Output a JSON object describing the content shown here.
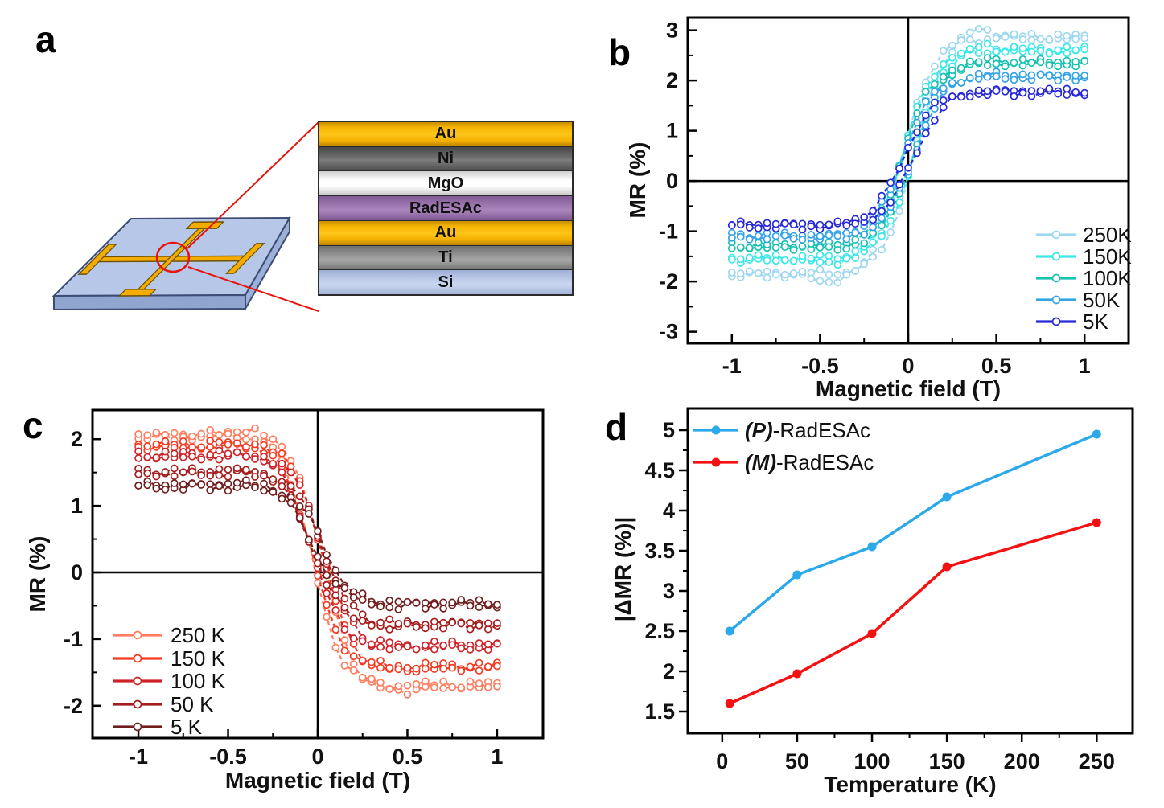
{
  "figure": {
    "background": "#ffffff"
  },
  "panels": {
    "a": {
      "letter": "a"
    },
    "b": {
      "letter": "b"
    },
    "c": {
      "letter": "c"
    },
    "d": {
      "letter": "d"
    }
  },
  "device": {
    "stack_layers": [
      {
        "label": "Au",
        "material": "au"
      },
      {
        "label": "Ni",
        "material": "ni"
      },
      {
        "label": "MgO",
        "material": "mgo"
      },
      {
        "label": "RadESAc",
        "material": "rad"
      },
      {
        "label": "Au",
        "material": "au"
      },
      {
        "label": "Ti",
        "material": "ti"
      },
      {
        "label": "Si",
        "material": "si"
      }
    ],
    "substrate_color": "#b6c7e7",
    "electrode_color": "#f4ac00",
    "callout_color": "#e8130d"
  },
  "chart_data": [
    {
      "id": "b",
      "type": "line",
      "subtype": "hysteresis",
      "title": "",
      "xlabel": "Magnetic field (T)",
      "ylabel": "MR (%)",
      "xlim": [
        -1.25,
        1.25
      ],
      "ylim": [
        -3.23,
        3.25
      ],
      "xticks": [
        -1,
        -0.5,
        0,
        0.5,
        1
      ],
      "xminor": [
        -0.75,
        -0.25,
        0.25,
        0.75
      ],
      "yticks": [
        -3,
        -2,
        -1,
        0,
        1,
        2,
        3
      ],
      "yminor": [
        -2.5,
        -1.5,
        -0.5,
        0.5,
        1.5,
        2.5
      ],
      "grid": false,
      "zero_lines": true,
      "legend_position": "right-middle",
      "model": {
        "type": "tanh_hysteresis",
        "x_range": [
          -1,
          1
        ],
        "step": 0.05,
        "transition_width": 0.17,
        "branch_center_offset": 0.03,
        "overshoot_center": 0.38,
        "overshoot_sigma": 0.12,
        "wiggle1": 0.05,
        "wiggle2": 0.035
      },
      "series": [
        {
          "name": "250K",
          "color": "#9ed7f0",
          "y_at_minus_1T": -1.85,
          "y_at_plus_1T": 2.85,
          "overshoot": 0.2
        },
        {
          "name": "150K",
          "color": "#3ae8e8",
          "y_at_minus_1T": -1.55,
          "y_at_plus_1T": 2.6,
          "overshoot": 0.1
        },
        {
          "name": "100K",
          "color": "#18c2b0",
          "y_at_minus_1T": -1.3,
          "y_at_plus_1T": 2.35,
          "overshoot": 0.07
        },
        {
          "name": "50K",
          "color": "#35a3e8",
          "y_at_minus_1T": -1.1,
          "y_at_plus_1T": 2.08,
          "overshoot": 0.05
        },
        {
          "name": "5K",
          "color": "#2828d8",
          "y_at_minus_1T": -0.88,
          "y_at_plus_1T": 1.77,
          "overshoot": 0.03
        }
      ]
    },
    {
      "id": "c",
      "type": "line",
      "subtype": "hysteresis",
      "title": "",
      "xlabel": "Magnetic field (T)",
      "ylabel": "MR (%)",
      "xlim": [
        -1.256,
        1.256
      ],
      "ylim": [
        -2.485,
        2.437
      ],
      "xticks": [
        -1,
        -0.5,
        0,
        0.5,
        1
      ],
      "xminor": [
        -0.75,
        -0.25,
        0.25,
        0.75
      ],
      "yticks": [
        -2,
        -1,
        0,
        1,
        2
      ],
      "yminor": [
        -1.5,
        -0.5,
        0.5,
        1.5
      ],
      "grid": false,
      "zero_lines": true,
      "legend_position": "left-lower",
      "model": {
        "type": "tanh_hysteresis",
        "x_range": [
          -1,
          1
        ],
        "step": 0.05,
        "transition_width": 0.16,
        "branch_center_offset": 0.03,
        "overshoot_center": 0.38,
        "overshoot_sigma": 0.12,
        "wiggle1": 0.045,
        "wiggle2": 0.03
      },
      "series": [
        {
          "name": "250 K",
          "color": "#ff7e5f",
          "y_at_minus_1T": 2.05,
          "y_at_plus_1T": -1.7,
          "overshoot": 0.12
        },
        {
          "name": "150 K",
          "color": "#f63a22",
          "y_at_minus_1T": 1.9,
          "y_at_plus_1T": -1.42,
          "overshoot": 0.08
        },
        {
          "name": "100 K",
          "color": "#cd2429",
          "y_at_minus_1T": 1.75,
          "y_at_plus_1T": -1.1,
          "overshoot": 0.06
        },
        {
          "name": "50 K",
          "color": "#a51d1d",
          "y_at_minus_1T": 1.5,
          "y_at_plus_1T": -0.78,
          "overshoot": 0.05
        },
        {
          "name": "5 K",
          "color": "#701e1e",
          "y_at_minus_1T": 1.3,
          "y_at_plus_1T": -0.47,
          "overshoot": 0.04
        }
      ]
    },
    {
      "id": "d",
      "type": "line",
      "subtype": "points",
      "title": "",
      "xlabel": "Temperature (K)",
      "ylabel": "|ΔMR (%)|",
      "xlim": [
        -23,
        274
      ],
      "ylim": [
        1.23,
        5.27
      ],
      "xticks": [
        0,
        50,
        100,
        150,
        200,
        250
      ],
      "xminor": [
        25,
        75,
        125,
        175,
        225
      ],
      "yticks": [
        1.5,
        2,
        2.5,
        3,
        3.5,
        4,
        4.5,
        5
      ],
      "yminor": [
        1.75,
        2.25,
        2.75,
        3.25,
        3.75,
        4.25,
        4.75
      ],
      "grid": false,
      "zero_lines": false,
      "legend_position": "top-left",
      "x": [
        5,
        50,
        100,
        150,
        250
      ],
      "series": [
        {
          "name_prefix": "(P)",
          "name_rest": "-RadESAc",
          "color": "#2ba9ea",
          "y": [
            2.5,
            3.2,
            3.55,
            4.17,
            4.95
          ]
        },
        {
          "name_prefix": "(M)",
          "name_rest": "-RadESAc",
          "color": "#f51111",
          "y": [
            1.6,
            1.97,
            2.47,
            3.3,
            3.85
          ]
        }
      ]
    }
  ]
}
